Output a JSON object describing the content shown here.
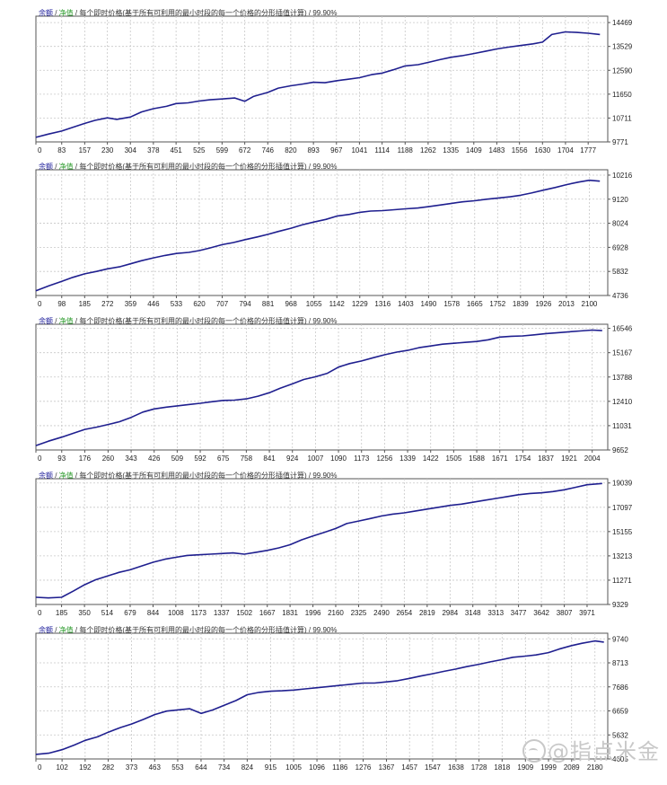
{
  "legend": {
    "balance": "余额",
    "sep1": " / ",
    "equity": "净值",
    "sep2": " / ",
    "desc": "每个即时价格(基于所有可利用的最小时段的每一个价格的分形插值计算)",
    "sep3": " / ",
    "quality": "99.90%"
  },
  "colors": {
    "line": "#1f1f8f",
    "grid": "#c8c8c8",
    "balance_label": "#1a1a9a",
    "equity_label": "#2a9a2a",
    "frame": "#555555",
    "watermark": "#c8c8c8"
  },
  "watermark": {
    "icon": "circle-logo-icon",
    "text": "@指点米金"
  },
  "chart_data": [
    {
      "type": "line",
      "title": "",
      "legend": "余额 / 净值 / 每个即时价格(基于所有可利用的最小时段的每一个价格的分形插值计算) / 99.90%",
      "x_ticks": [
        "0",
        "83",
        "157",
        "230",
        "304",
        "378",
        "451",
        "525",
        "599",
        "672",
        "746",
        "820",
        "893",
        "967",
        "1041",
        "1114",
        "1188",
        "1262",
        "1335",
        "1409",
        "1483",
        "1556",
        "1630",
        "1704",
        "1777"
      ],
      "y_ticks": [
        "14469",
        "13529",
        "12590",
        "11650",
        "10711",
        "9771"
      ],
      "xlim": [
        0,
        1840
      ],
      "ylim": [
        9771,
        14720
      ],
      "grid": true,
      "series": [
        {
          "x": [
            0,
            40,
            83,
            120,
            157,
            190,
            230,
            260,
            304,
            340,
            378,
            420,
            451,
            490,
            525,
            560,
            599,
            640,
            672,
            700,
            746,
            780,
            820,
            860,
            893,
            930,
            967,
            1000,
            1041,
            1080,
            1114,
            1150,
            1188,
            1230,
            1262,
            1300,
            1335,
            1370,
            1409,
            1450,
            1483,
            1520,
            1556,
            1600,
            1630,
            1660,
            1704,
            1740,
            1777,
            1815
          ],
          "y": [
            9950,
            10080,
            10200,
            10350,
            10500,
            10620,
            10720,
            10660,
            10750,
            10950,
            11080,
            11170,
            11280,
            11310,
            11380,
            11430,
            11460,
            11500,
            11370,
            11560,
            11720,
            11890,
            11980,
            12050,
            12120,
            12100,
            12180,
            12230,
            12300,
            12420,
            12480,
            12610,
            12760,
            12810,
            12900,
            13010,
            13100,
            13160,
            13250,
            13350,
            13430,
            13500,
            13560,
            13630,
            13700,
            14000,
            14100,
            14080,
            14050,
            14000
          ]
        }
      ]
    },
    {
      "type": "line",
      "title": "",
      "legend": "余额 / 净值 / 每个即时价格(基于所有可利用的最小时段的每一个价格的分形插值计算) / 99.90%",
      "x_ticks": [
        "0",
        "98",
        "185",
        "272",
        "359",
        "446",
        "533",
        "620",
        "707",
        "794",
        "881",
        "968",
        "1055",
        "1142",
        "1229",
        "1316",
        "1403",
        "1490",
        "1578",
        "1665",
        "1752",
        "1839",
        "1926",
        "2013",
        "2100"
      ],
      "y_ticks": [
        "10216",
        "9120",
        "8024",
        "6928",
        "5832",
        "4736"
      ],
      "xlim": [
        0,
        2170
      ],
      "ylim": [
        4736,
        10460
      ],
      "grid": true,
      "series": [
        {
          "x": [
            0,
            50,
            98,
            140,
            185,
            230,
            272,
            320,
            359,
            400,
            446,
            490,
            533,
            580,
            620,
            660,
            707,
            750,
            794,
            840,
            881,
            920,
            968,
            1010,
            1055,
            1100,
            1142,
            1190,
            1229,
            1270,
            1316,
            1360,
            1403,
            1450,
            1490,
            1530,
            1578,
            1620,
            1665,
            1710,
            1752,
            1800,
            1839,
            1880,
            1926,
            1970,
            2013,
            2060,
            2100,
            2140
          ],
          "y": [
            4950,
            5180,
            5380,
            5560,
            5720,
            5830,
            5950,
            6050,
            6180,
            6320,
            6450,
            6560,
            6650,
            6700,
            6780,
            6900,
            7050,
            7150,
            7280,
            7400,
            7520,
            7650,
            7800,
            7950,
            8080,
            8200,
            8350,
            8430,
            8520,
            8580,
            8600,
            8640,
            8680,
            8720,
            8780,
            8850,
            8930,
            9000,
            9050,
            9120,
            9170,
            9230,
            9300,
            9400,
            9530,
            9650,
            9780,
            9900,
            9980,
            9940
          ]
        }
      ]
    },
    {
      "type": "line",
      "title": "",
      "legend": "余额 / 净值 / 每个即时价格(基于所有可利用的最小时段的每一个价格的分形插值计算) / 99.90%",
      "x_ticks": [
        "0",
        "93",
        "176",
        "260",
        "343",
        "426",
        "509",
        "592",
        "675",
        "758",
        "841",
        "924",
        "1007",
        "1090",
        "1173",
        "1256",
        "1339",
        "1422",
        "1505",
        "1588",
        "1671",
        "1754",
        "1837",
        "1921",
        "2004"
      ],
      "y_ticks": [
        "16546",
        "15167",
        "13788",
        "12410",
        "11031",
        "9652"
      ],
      "xlim": [
        0,
        2060
      ],
      "ylim": [
        9652,
        16780
      ],
      "grid": true,
      "series": [
        {
          "x": [
            0,
            45,
            93,
            135,
            176,
            220,
            260,
            300,
            343,
            385,
            426,
            470,
            509,
            550,
            592,
            630,
            675,
            715,
            758,
            800,
            841,
            880,
            924,
            965,
            1007,
            1050,
            1090,
            1130,
            1173,
            1215,
            1256,
            1300,
            1339,
            1380,
            1422,
            1465,
            1505,
            1545,
            1588,
            1630,
            1671,
            1712,
            1754,
            1795,
            1837,
            1880,
            1921,
            1960,
            2004,
            2040
          ],
          "y": [
            9900,
            10150,
            10380,
            10600,
            10820,
            10950,
            11100,
            11250,
            11500,
            11800,
            11980,
            12080,
            12150,
            12230,
            12300,
            12380,
            12460,
            12480,
            12550,
            12700,
            12900,
            13150,
            13400,
            13650,
            13800,
            14000,
            14350,
            14550,
            14700,
            14880,
            15050,
            15200,
            15300,
            15450,
            15550,
            15650,
            15700,
            15750,
            15800,
            15900,
            16050,
            16100,
            16120,
            16180,
            16250,
            16300,
            16350,
            16400,
            16450,
            16420
          ]
        }
      ]
    },
    {
      "type": "line",
      "title": "",
      "legend": "余额 / 净值 / 每个即时价格(基于所有可利用的最小时段的每一个价格的分形插值计算) / 99.90%",
      "x_ticks": [
        "0",
        "185",
        "350",
        "514",
        "679",
        "844",
        "1008",
        "1173",
        "1337",
        "1502",
        "1667",
        "1831",
        "1996",
        "2160",
        "2325",
        "2490",
        "2654",
        "2819",
        "2984",
        "3148",
        "3313",
        "3477",
        "3642",
        "3807",
        "3971"
      ],
      "y_ticks": [
        "19039",
        "17097",
        "15155",
        "13213",
        "11271",
        "9329"
      ],
      "xlim": [
        0,
        4120
      ],
      "ylim": [
        9329,
        19380
      ],
      "grid": true,
      "series": [
        {
          "x": [
            0,
            90,
            185,
            270,
            350,
            430,
            514,
            600,
            679,
            760,
            844,
            930,
            1008,
            1090,
            1173,
            1255,
            1337,
            1420,
            1502,
            1585,
            1667,
            1750,
            1831,
            1915,
            1996,
            2080,
            2160,
            2240,
            2325,
            2410,
            2490,
            2570,
            2654,
            2735,
            2819,
            2900,
            2984,
            3065,
            3148,
            3230,
            3313,
            3395,
            3477,
            3560,
            3642,
            3725,
            3807,
            3890,
            3971,
            4080
          ],
          "y": [
            9900,
            9850,
            9900,
            10400,
            10900,
            11300,
            11600,
            11900,
            12100,
            12400,
            12700,
            12950,
            13100,
            13250,
            13300,
            13350,
            13400,
            13450,
            13350,
            13500,
            13650,
            13850,
            14100,
            14500,
            14800,
            15100,
            15400,
            15800,
            16000,
            16200,
            16400,
            16550,
            16650,
            16800,
            16950,
            17100,
            17250,
            17350,
            17500,
            17650,
            17800,
            17950,
            18100,
            18200,
            18250,
            18350,
            18500,
            18700,
            18900,
            19000
          ]
        }
      ]
    },
    {
      "type": "line",
      "title": "",
      "legend": "余额 / 净值 / 每个即时价格(基于所有可利用的最小时段的每一个价格的分形插值计算) / 99.90%",
      "x_ticks": [
        "0",
        "102",
        "192",
        "282",
        "373",
        "463",
        "553",
        "644",
        "734",
        "824",
        "915",
        "1005",
        "1096",
        "1186",
        "1276",
        "1367",
        "1457",
        "1547",
        "1638",
        "1728",
        "1818",
        "1909",
        "1999",
        "2089",
        "2180"
      ],
      "y_ticks": [
        "9740",
        "8713",
        "7686",
        "6659",
        "5632",
        "4605"
      ],
      "xlim": [
        0,
        2230
      ],
      "ylim": [
        4605,
        9980
      ],
      "grid": true,
      "series": [
        {
          "x": [
            0,
            50,
            102,
            150,
            192,
            240,
            282,
            330,
            373,
            420,
            463,
            510,
            553,
            600,
            644,
            690,
            734,
            780,
            824,
            870,
            915,
            960,
            1005,
            1050,
            1096,
            1140,
            1186,
            1230,
            1276,
            1320,
            1367,
            1410,
            1457,
            1500,
            1547,
            1590,
            1638,
            1680,
            1728,
            1770,
            1818,
            1860,
            1909,
            1950,
            1999,
            2040,
            2089,
            2130,
            2180,
            2215
          ],
          "y": [
            4800,
            4850,
            5000,
            5200,
            5400,
            5550,
            5750,
            5950,
            6100,
            6300,
            6500,
            6650,
            6700,
            6750,
            6550,
            6700,
            6900,
            7100,
            7350,
            7450,
            7500,
            7520,
            7550,
            7600,
            7650,
            7700,
            7750,
            7800,
            7850,
            7850,
            7900,
            7950,
            8050,
            8150,
            8250,
            8350,
            8450,
            8550,
            8650,
            8750,
            8850,
            8950,
            9000,
            9050,
            9150,
            9300,
            9450,
            9550,
            9650,
            9600
          ]
        }
      ]
    }
  ]
}
